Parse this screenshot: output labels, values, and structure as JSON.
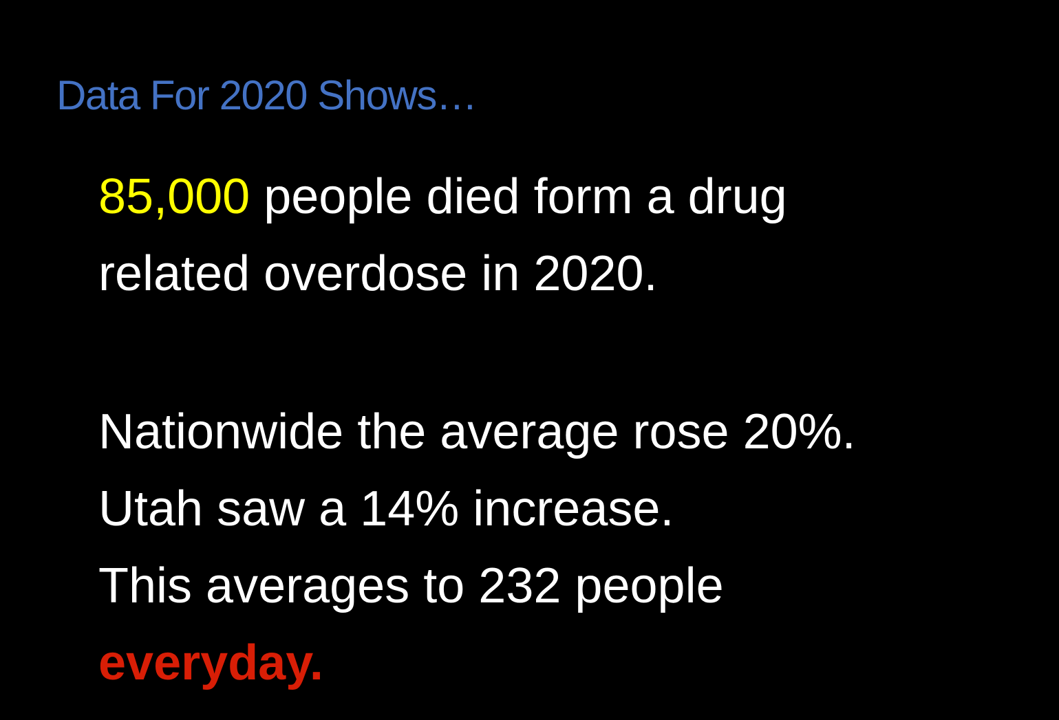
{
  "title": "Data For 2020 Shows…",
  "paragraph1": {
    "highlight": "85,000",
    "line1_rest": " people died form a drug",
    "line2": "related overdose in 2020."
  },
  "paragraph2": {
    "line1": "Nationwide the average rose 20%.",
    "line2": "Utah saw a 14% increase.",
    "line3": "This averages to 232  people",
    "emphasis": "everyday."
  },
  "colors": {
    "background": "#000000",
    "title": "#4472C4",
    "body_text": "#FFFFFF",
    "highlight": "#FFFF00",
    "emphasis": "#D81E06"
  }
}
